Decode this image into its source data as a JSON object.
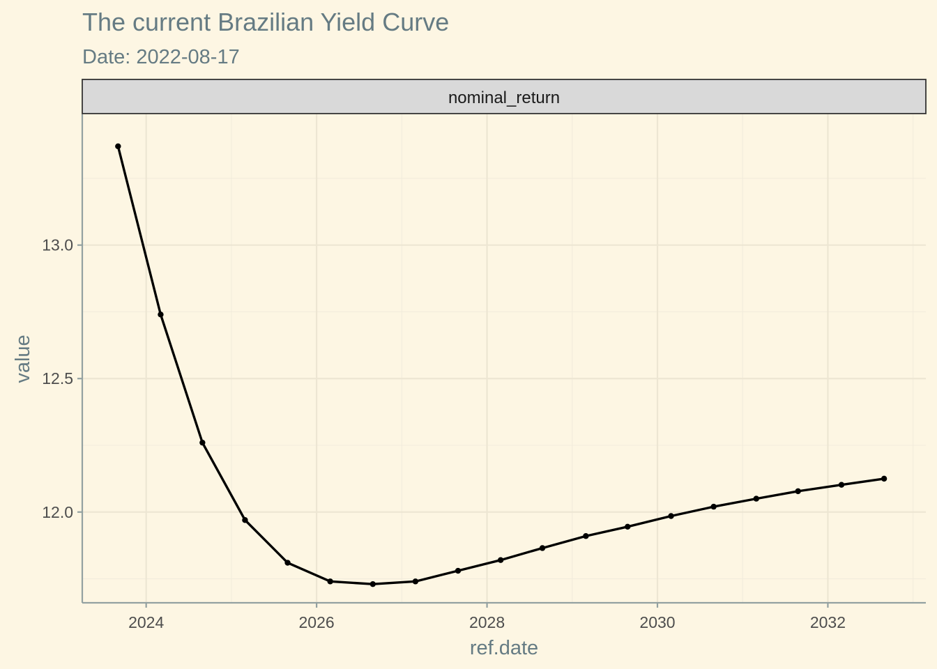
{
  "chart_data": {
    "type": "line",
    "title": "The current Brazilian Yield Curve",
    "subtitle": "Date: 2022-08-17",
    "facet_label": "nominal_return",
    "xlabel": "ref.date",
    "ylabel": "value",
    "x_ticks": [
      "2024",
      "2026",
      "2028",
      "2030",
      "2032"
    ],
    "y_ticks": [
      "12.0",
      "12.5",
      "13.0"
    ],
    "x_range": [
      2023.25,
      2033.15
    ],
    "y_range": [
      11.66,
      13.49
    ],
    "grid": true,
    "markers": true,
    "line_color": "#000000",
    "panel_background": "#fdf6e3",
    "strip_background": "#d9d9d9",
    "series": [
      {
        "x": [
          2023.67,
          2024.17,
          2024.66,
          2025.16,
          2025.66,
          2026.16,
          2026.66,
          2027.16,
          2027.66,
          2028.16,
          2028.65,
          2029.16,
          2029.65,
          2030.16,
          2030.66,
          2031.16,
          2031.65,
          2032.16,
          2032.66
        ],
        "values": [
          13.37,
          12.74,
          12.26,
          11.97,
          11.81,
          11.74,
          11.73,
          11.74,
          11.78,
          11.82,
          11.865,
          11.91,
          11.945,
          11.985,
          12.02,
          12.05,
          12.078,
          12.102,
          12.125
        ]
      }
    ]
  }
}
